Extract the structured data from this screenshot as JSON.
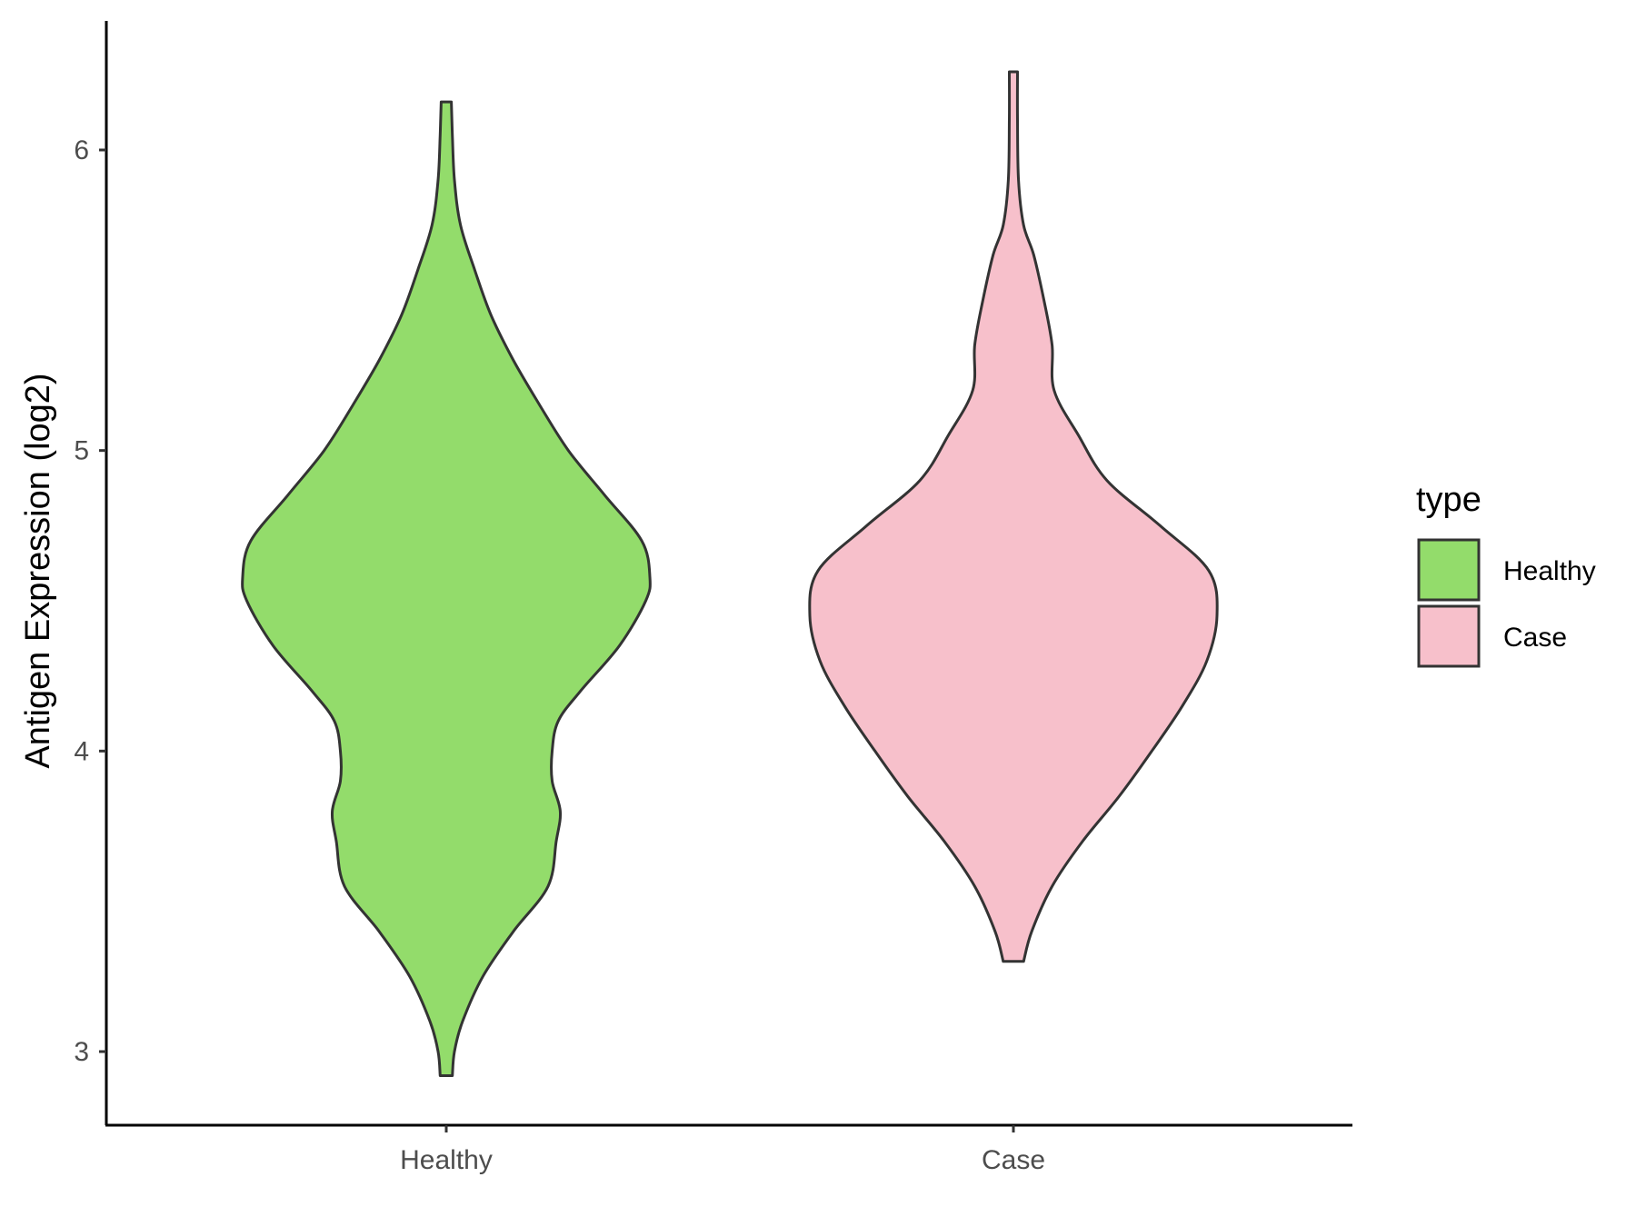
{
  "chart_data": {
    "type": "violin",
    "title": "",
    "xlabel": "",
    "ylabel": "Antigen Expression (log2)",
    "categories": [
      "Healthy",
      "Case"
    ],
    "ylim": [
      2.75,
      6.42
    ],
    "yticks": [
      3,
      4,
      5,
      6
    ],
    "grid": false,
    "legend": {
      "title": "type",
      "position": "right",
      "entries": [
        {
          "label": "Healthy",
          "color": "#93dc6b"
        },
        {
          "label": "Case",
          "color": "#f7c0cb"
        }
      ]
    },
    "series": [
      {
        "category": "Healthy",
        "color": "#93dc6b",
        "min": 2.92,
        "max": 6.16,
        "density_profile": [
          [
            2.92,
            0.03
          ],
          [
            3.0,
            0.04
          ],
          [
            3.1,
            0.08
          ],
          [
            3.25,
            0.18
          ],
          [
            3.4,
            0.33
          ],
          [
            3.55,
            0.5
          ],
          [
            3.7,
            0.54
          ],
          [
            3.8,
            0.56
          ],
          [
            3.9,
            0.52
          ],
          [
            4.0,
            0.52
          ],
          [
            4.1,
            0.55
          ],
          [
            4.2,
            0.66
          ],
          [
            4.35,
            0.85
          ],
          [
            4.5,
            0.98
          ],
          [
            4.58,
            1.0
          ],
          [
            4.7,
            0.96
          ],
          [
            4.85,
            0.78
          ],
          [
            5.0,
            0.6
          ],
          [
            5.15,
            0.46
          ],
          [
            5.3,
            0.33
          ],
          [
            5.45,
            0.22
          ],
          [
            5.6,
            0.14
          ],
          [
            5.75,
            0.07
          ],
          [
            5.9,
            0.04
          ],
          [
            6.05,
            0.03
          ],
          [
            6.16,
            0.025
          ]
        ]
      },
      {
        "category": "Case",
        "color": "#f7c0cb",
        "min": 3.3,
        "max": 6.26,
        "density_profile": [
          [
            3.3,
            0.05
          ],
          [
            3.4,
            0.09
          ],
          [
            3.55,
            0.19
          ],
          [
            3.7,
            0.34
          ],
          [
            3.85,
            0.52
          ],
          [
            4.0,
            0.68
          ],
          [
            4.15,
            0.83
          ],
          [
            4.3,
            0.95
          ],
          [
            4.45,
            1.0
          ],
          [
            4.6,
            0.96
          ],
          [
            4.75,
            0.72
          ],
          [
            4.9,
            0.46
          ],
          [
            5.05,
            0.32
          ],
          [
            5.2,
            0.2
          ],
          [
            5.35,
            0.19
          ],
          [
            5.5,
            0.15
          ],
          [
            5.65,
            0.1
          ],
          [
            5.75,
            0.05
          ],
          [
            5.9,
            0.025
          ],
          [
            6.1,
            0.02
          ],
          [
            6.26,
            0.02
          ]
        ]
      }
    ]
  }
}
